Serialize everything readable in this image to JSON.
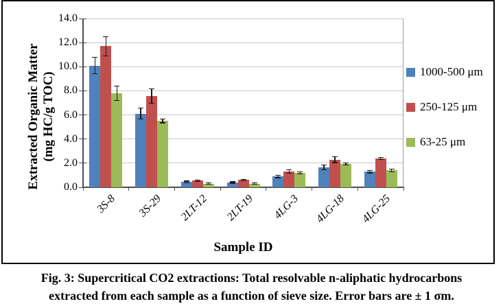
{
  "figure": {
    "caption_line1": "Fig. 3: Supercritical CO2 extractions: Total resolvable n-aliphatic hydrocarbons",
    "caption_line2": "extracted from each sample as a function of sieve size. Error bars are ± 1 σm."
  },
  "chart_data": {
    "type": "bar",
    "title": "",
    "xlabel": "Sample ID",
    "ylabel_line1": "Extracted Organic Matter",
    "ylabel_line2": "(mg HC/g TOC)",
    "categories": [
      "3S-8",
      "3S-29",
      "2LT-12",
      "2LT-19",
      "4LG-3",
      "4LG-18",
      "4LG-25"
    ],
    "series": [
      {
        "name": "1000-500 μm",
        "color": "#4F81BD",
        "values": [
          10.1,
          6.1,
          0.45,
          0.4,
          0.9,
          1.65,
          1.3
        ],
        "errors": [
          0.7,
          0.45,
          0.06,
          0.06,
          0.1,
          0.18,
          0.1
        ]
      },
      {
        "name": "250-125 μm",
        "color": "#C0504D",
        "values": [
          11.7,
          7.55,
          0.55,
          0.6,
          1.3,
          2.3,
          2.4
        ],
        "errors": [
          0.8,
          0.6,
          0.06,
          0.06,
          0.15,
          0.25,
          0.08
        ]
      },
      {
        "name": "63-25 μm",
        "color": "#9BBB59",
        "values": [
          7.8,
          5.5,
          0.3,
          0.3,
          1.2,
          1.95,
          1.4
        ],
        "errors": [
          0.6,
          0.15,
          0.05,
          0.05,
          0.07,
          0.09,
          0.12
        ]
      }
    ],
    "ylim": [
      0,
      14
    ],
    "ytick_step": 2,
    "ytick_decimals": 1,
    "grid": true,
    "legend_position": "right",
    "error_bars": "plus-minus 1 sigma-m"
  },
  "colors": {
    "axis": "#4d4d4d",
    "gridline": "#c8c8c8",
    "error_bar": "#1a1a1a",
    "figure_border": "#000000",
    "background": "#ffffff"
  }
}
